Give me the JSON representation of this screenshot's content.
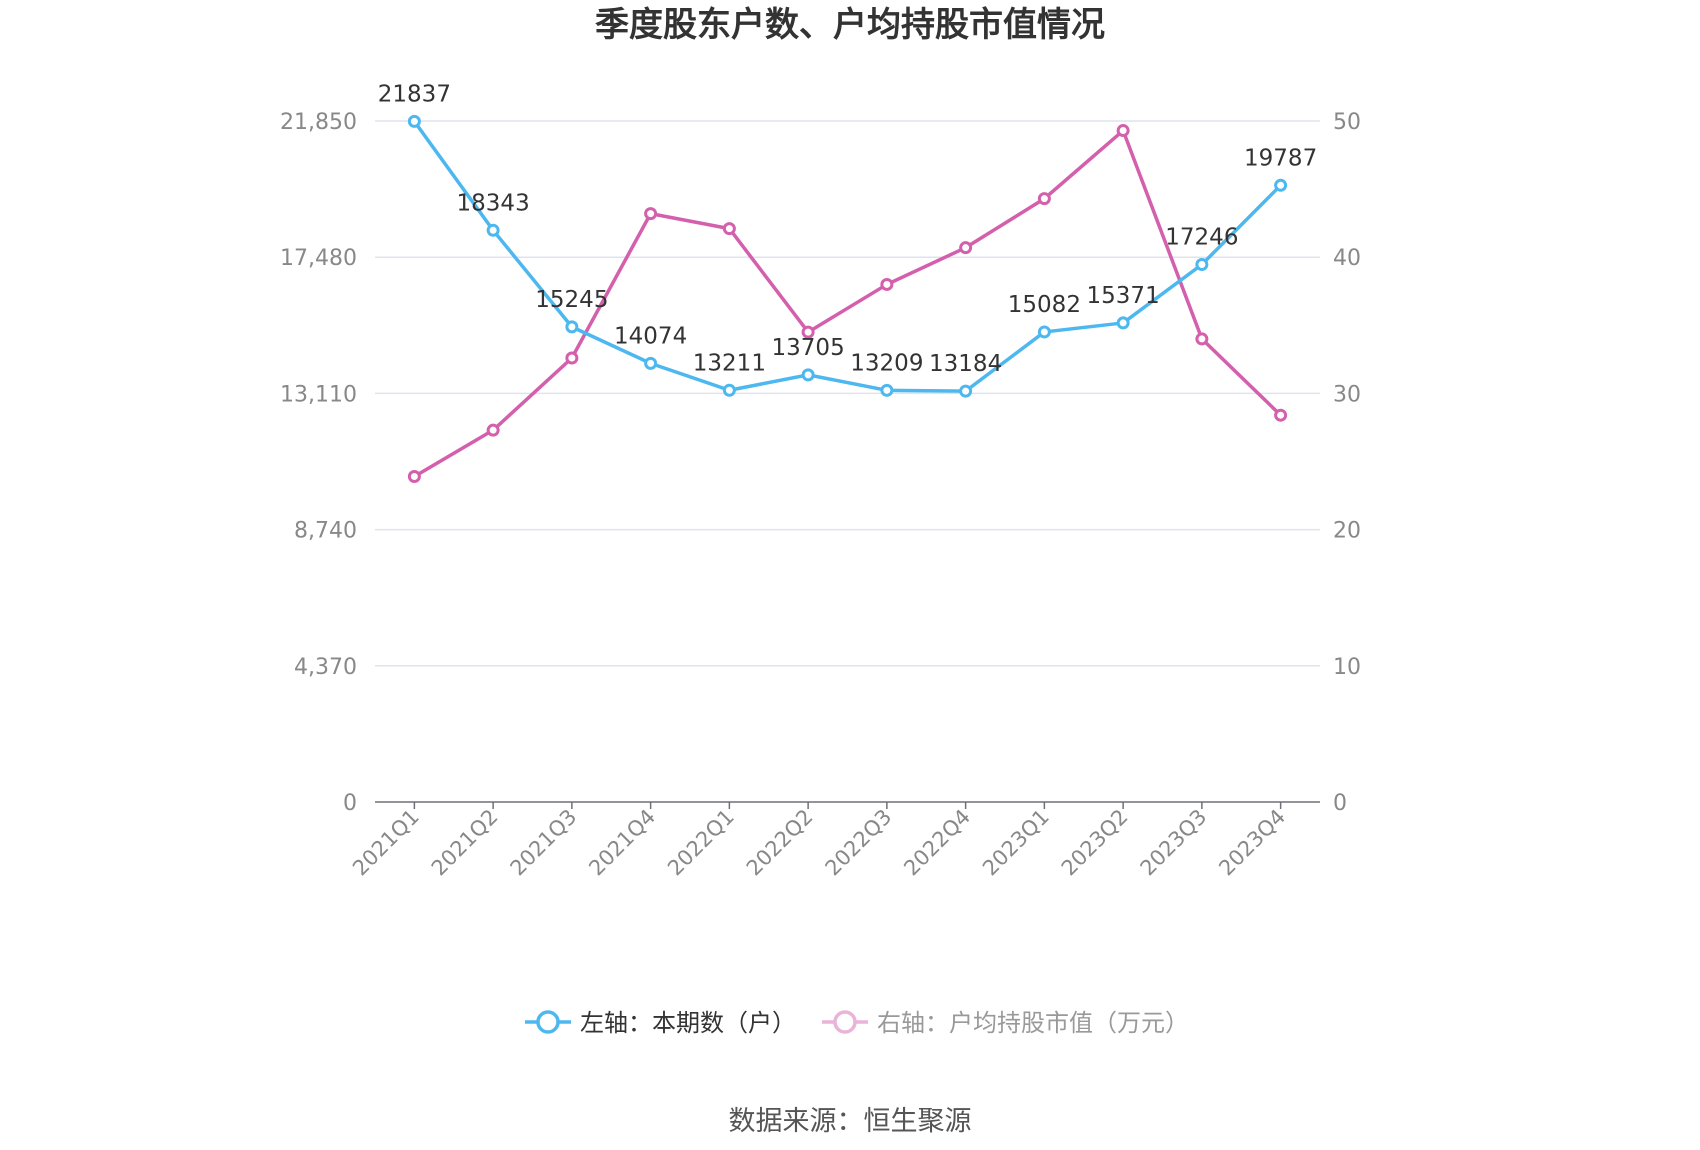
{
  "chart_data": {
    "type": "line",
    "title": "季度股东户数、户均持股市值情况",
    "categories": [
      "2021Q1",
      "2021Q2",
      "2021Q3",
      "2021Q4",
      "2022Q1",
      "2022Q2",
      "2022Q3",
      "2022Q4",
      "2023Q1",
      "2023Q2",
      "2023Q3",
      "2023Q4"
    ],
    "left_axis": {
      "ticks": [
        "0",
        "4,370",
        "8,740",
        "13,110",
        "17,480",
        "21,850"
      ],
      "ylim": [
        0,
        21850
      ]
    },
    "right_axis": {
      "ticks": [
        "0",
        "10",
        "20",
        "30",
        "40",
        "50"
      ],
      "ylim": [
        0,
        50
      ]
    },
    "grid": true,
    "legend_position": "bottom",
    "series": [
      {
        "name": "左轴：本期数（户）",
        "axis": "left",
        "color": "#4db8f0",
        "values": [
          21837,
          18343,
          15245,
          14074,
          13211,
          13705,
          13209,
          13184,
          15082,
          15371,
          17246,
          19787
        ],
        "labels": [
          "21837",
          "18343",
          "15245",
          "14074",
          "13211",
          "13705",
          "13209",
          "13184",
          "15082",
          "15371",
          "17246",
          "19787"
        ]
      },
      {
        "name": "右轴：户均持股市值（万元）",
        "axis": "right",
        "color": "#d45fac",
        "values": [
          23.9,
          27.3,
          32.6,
          43.2,
          42.1,
          34.5,
          38.0,
          40.7,
          44.3,
          49.3,
          34.0,
          28.4
        ]
      }
    ]
  },
  "source": "数据来源：恒生聚源"
}
